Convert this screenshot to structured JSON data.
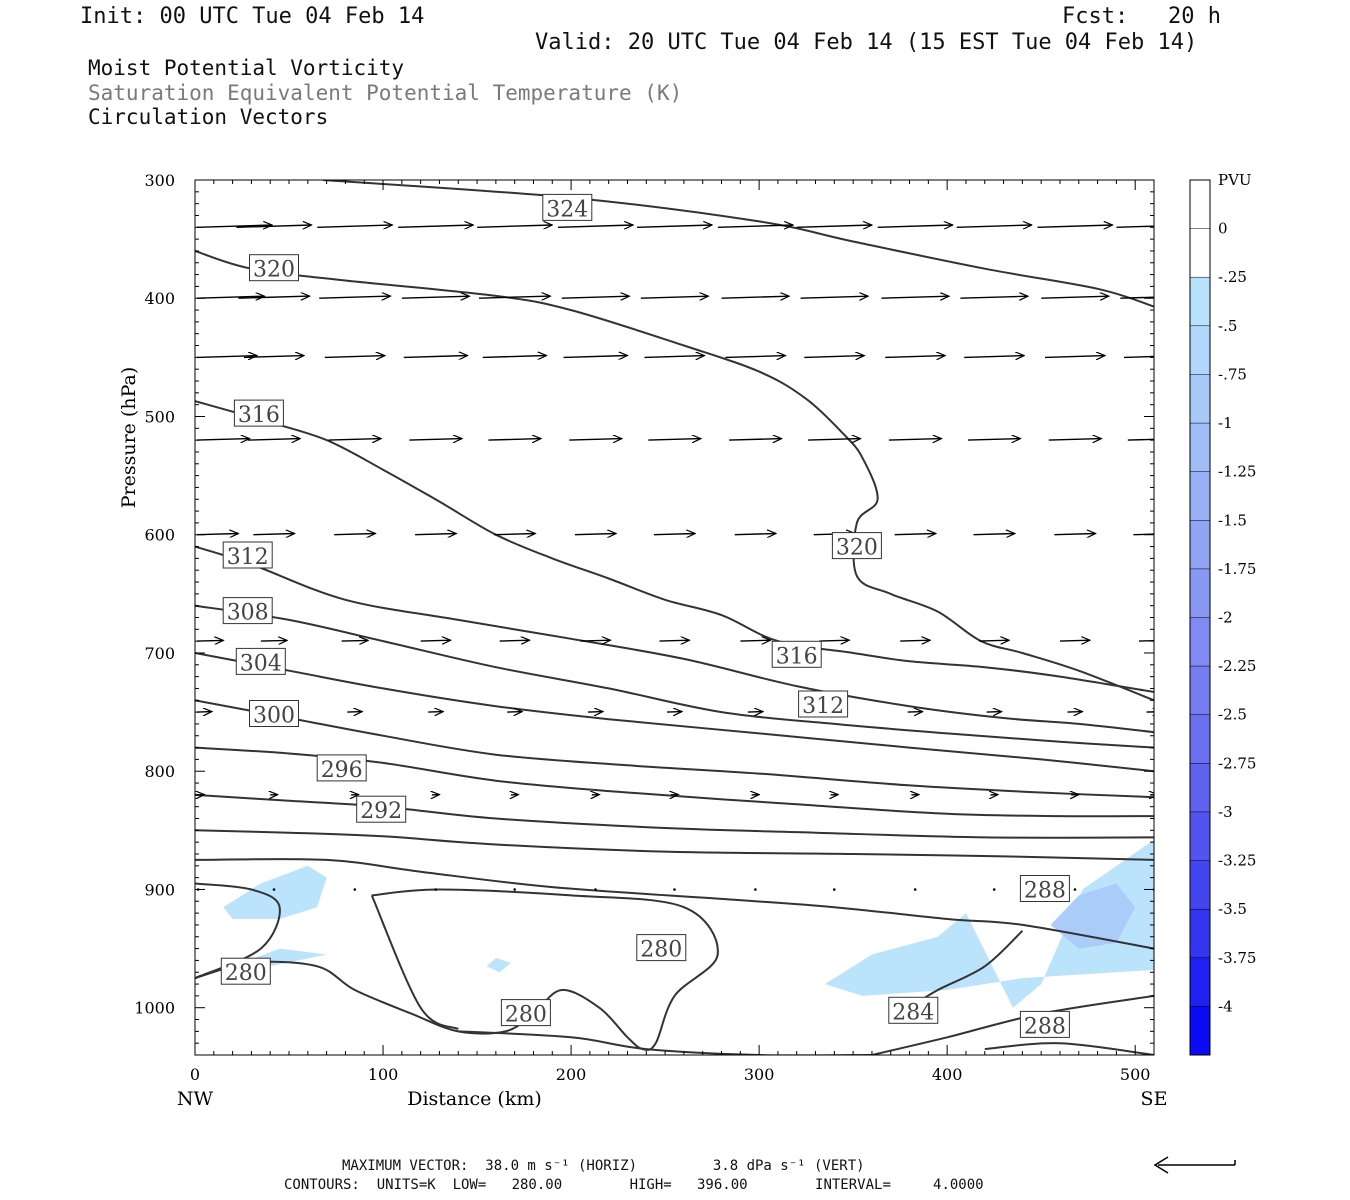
{
  "header": {
    "init": "Init: 00 UTC Tue 04 Feb 14",
    "fcst": "Fcst:   20 h",
    "valid": "Valid: 20 UTC Tue 04 Feb 14 (15 EST Tue 04 Feb 14)",
    "field1": "Moist Potential Vorticity",
    "field2": "Saturation Equivalent Potential Temperature (K)",
    "field3": "Circulation Vectors"
  },
  "chart_data": {
    "type": "contour",
    "xlabel": "Distance (km)",
    "ylabel": "Pressure (hPa)",
    "xlim": [
      0,
      510
    ],
    "ylim": [
      1040,
      300
    ],
    "x_ticks": [
      "0",
      "100",
      "200",
      "300",
      "400",
      "500"
    ],
    "y_ticks": [
      "300",
      "400",
      "500",
      "600",
      "700",
      "800",
      "900",
      "1000"
    ],
    "x_end_labels": {
      "left": "NW",
      "right": "SE"
    },
    "contour_units": "K",
    "contours": [
      {
        "value": 324,
        "label": "324",
        "points": [
          [
            68,
            300
          ],
          [
            200,
            315
          ],
          [
            300,
            335
          ],
          [
            350,
            352
          ],
          [
            420,
            375
          ],
          [
            480,
            392
          ],
          [
            510,
            407
          ]
        ],
        "label_at": [
          198,
          324
        ]
      },
      {
        "value": 320,
        "label": "320",
        "points": [
          [
            0,
            360
          ],
          [
            30,
            375
          ],
          [
            80,
            385
          ],
          [
            160,
            398
          ],
          [
            200,
            410
          ],
          [
            260,
            440
          ],
          [
            300,
            462
          ],
          [
            325,
            485
          ],
          [
            345,
            515
          ],
          [
            355,
            535
          ],
          [
            363,
            570
          ],
          [
            352,
            590
          ],
          [
            352,
            635
          ],
          [
            370,
            650
          ],
          [
            395,
            665
          ],
          [
            418,
            690
          ],
          [
            440,
            700
          ],
          [
            470,
            715
          ],
          [
            510,
            740
          ]
        ],
        "label_at": [
          [
            42,
            375
          ],
          [
            352,
            610
          ]
        ]
      },
      {
        "value": 316,
        "label": "316",
        "points": [
          [
            0,
            487
          ],
          [
            40,
            505
          ],
          [
            70,
            520
          ],
          [
            100,
            545
          ],
          [
            130,
            572
          ],
          [
            160,
            600
          ],
          [
            190,
            620
          ],
          [
            220,
            637
          ],
          [
            250,
            655
          ],
          [
            280,
            668
          ],
          [
            310,
            690
          ],
          [
            350,
            700
          ],
          [
            380,
            707
          ],
          [
            420,
            712
          ],
          [
            460,
            720
          ],
          [
            510,
            733
          ]
        ],
        "label_at": [
          [
            34,
            498
          ],
          [
            320,
            702
          ]
        ]
      },
      {
        "value": 312,
        "label": "312",
        "points": [
          [
            0,
            610
          ],
          [
            30,
            625
          ],
          [
            80,
            655
          ],
          [
            140,
            672
          ],
          [
            200,
            688
          ],
          [
            260,
            705
          ],
          [
            320,
            728
          ],
          [
            380,
            745
          ],
          [
            430,
            755
          ],
          [
            470,
            760
          ],
          [
            510,
            767
          ]
        ],
        "label_at": [
          [
            28,
            618
          ],
          [
            334,
            744
          ]
        ]
      },
      {
        "value": 308,
        "label": "308",
        "points": [
          [
            0,
            660
          ],
          [
            50,
            672
          ],
          [
            100,
            690
          ],
          [
            160,
            712
          ],
          [
            220,
            730
          ],
          [
            280,
            750
          ],
          [
            340,
            760
          ],
          [
            400,
            768
          ],
          [
            460,
            775
          ],
          [
            510,
            780
          ]
        ],
        "label_at": [
          28,
          665
        ]
      },
      {
        "value": 304,
        "label": "304",
        "points": [
          [
            0,
            700
          ],
          [
            50,
            715
          ],
          [
            100,
            730
          ],
          [
            160,
            745
          ],
          [
            220,
            756
          ],
          [
            300,
            768
          ],
          [
            380,
            780
          ],
          [
            450,
            790
          ],
          [
            510,
            800
          ]
        ],
        "label_at": [
          35,
          708
        ]
      },
      {
        "value": 300,
        "label": "300",
        "points": [
          [
            0,
            740
          ],
          [
            50,
            755
          ],
          [
            100,
            770
          ],
          [
            160,
            786
          ],
          [
            230,
            795
          ],
          [
            300,
            802
          ],
          [
            380,
            812
          ],
          [
            450,
            818
          ],
          [
            510,
            822
          ]
        ],
        "label_at": [
          42,
          752
        ]
      },
      {
        "value": 296,
        "label": "296",
        "points": [
          [
            0,
            780
          ],
          [
            50,
            785
          ],
          [
            100,
            793
          ],
          [
            160,
            808
          ],
          [
            230,
            818
          ],
          [
            320,
            828
          ],
          [
            400,
            836
          ],
          [
            460,
            838
          ],
          [
            510,
            838
          ]
        ],
        "label_at": [
          78,
          798
        ]
      },
      {
        "value": 292,
        "label": "292",
        "points": [
          [
            0,
            820
          ],
          [
            50,
            825
          ],
          [
            100,
            830
          ],
          [
            160,
            840
          ],
          [
            250,
            848
          ],
          [
            330,
            852
          ],
          [
            420,
            856
          ],
          [
            510,
            856
          ]
        ],
        "label_at": [
          99,
          833
        ]
      },
      {
        "value": 288,
        "label": "288",
        "points": [
          [
            0,
            850
          ],
          [
            50,
            852
          ],
          [
            100,
            855
          ],
          [
            160,
            862
          ],
          [
            250,
            868
          ],
          [
            350,
            870
          ],
          [
            430,
            872
          ],
          [
            510,
            875
          ]
        ],
        "label_at": [
          [
            452,
            900
          ],
          [
            452,
            1015
          ]
        ]
      },
      {
        "value": 284,
        "label": "284",
        "points": [
          [
            0,
            875
          ],
          [
            70,
            875
          ],
          [
            120,
            885
          ],
          [
            190,
            898
          ],
          [
            280,
            908
          ],
          [
            340,
            915
          ],
          [
            400,
            925
          ],
          [
            440,
            930
          ],
          [
            510,
            950
          ]
        ],
        "label_at": [
          382,
          1003
        ]
      },
      {
        "value": 280,
        "label": "280",
        "points": [
          [
            0,
            895
          ],
          [
            30,
            900
          ],
          [
            45,
            915
          ],
          [
            35,
            950
          ],
          [
            0,
            975
          ]
        ],
        "label_at": [
          [
            27,
            970
          ],
          [
            176,
            1005
          ],
          [
            248,
            950
          ]
        ]
      }
    ],
    "pv_shading": {
      "colorbar_label": "PVU",
      "levels": [
        "0",
        "-.25",
        "-.5",
        "-.75",
        "-1",
        "-1.25",
        "-1.5",
        "-1.75",
        "-2",
        "-2.25",
        "-2.5",
        "-2.75",
        "-3",
        "-3.25",
        "-3.5",
        "-3.75",
        "-4"
      ],
      "colors": [
        "#ffffff",
        "#ffffff",
        "#b8e2fc",
        "#b0d6fc",
        "#a8caf9",
        "#a0bdf8",
        "#98b0f6",
        "#90a4f4",
        "#8898f3",
        "#7f8af2",
        "#757df1",
        "#6a70f0",
        "#5f62ef",
        "#5254ef",
        "#4345ef",
        "#3335f0",
        "#1f20f2",
        "#0a0af4"
      ]
    },
    "vectors": {
      "max_horizontal": "38.0 m s-1",
      "max_vertical": "3.8 dPa s-1",
      "rows": [
        {
          "p": 340,
          "u": [
            1,
            1,
            1,
            1,
            1,
            1,
            1,
            1,
            1,
            1,
            1,
            1,
            1
          ]
        },
        {
          "p": 400,
          "u": [
            0.9,
            0.95,
            0.95,
            0.9,
            0.95,
            0.9,
            0.9,
            0.9,
            0.9,
            0.9,
            0.9,
            0.9,
            0.9
          ]
        },
        {
          "p": 450,
          "u": [
            0.8,
            0.8,
            0.8,
            0.85,
            0.85,
            0.85,
            0.8,
            0.8,
            0.8,
            0.8,
            0.8,
            0.8,
            0.8
          ]
        },
        {
          "p": 520,
          "u": [
            0.7,
            0.7,
            0.7,
            0.7,
            0.7,
            0.7,
            0.7,
            0.7,
            0.7,
            0.7,
            0.7,
            0.7,
            0.7
          ]
        },
        {
          "p": 600,
          "u": [
            0.55,
            0.55,
            0.55,
            0.55,
            0.55,
            0.55,
            0.55,
            0.55,
            0.55,
            0.55,
            0.55,
            0.55,
            0.55
          ]
        },
        {
          "p": 690,
          "u": [
            0.35,
            0.35,
            0.35,
            0.4,
            0.4,
            0.4,
            0.4,
            0.4,
            0.4,
            0.4,
            0.4,
            0.4,
            0.4
          ]
        },
        {
          "p": 750,
          "u": [
            0.2,
            0.2,
            0.2,
            0.2,
            0.2,
            0.2,
            0.2,
            0.2,
            0.2,
            0.2,
            0.2,
            0.2,
            0.2
          ]
        },
        {
          "p": 820,
          "u": [
            0.1,
            0.1,
            0.1,
            0.1,
            0.1,
            0.1,
            0.1,
            0.1,
            0.1,
            0.1,
            0.1,
            0.1,
            0.1
          ]
        },
        {
          "p": 900,
          "u": [
            0.03,
            0.03,
            0.03,
            0.03,
            0.03,
            0.03,
            0.03,
            0.03,
            0.03,
            0.03,
            0.03,
            0.03,
            0.03
          ]
        }
      ]
    }
  },
  "footer": {
    "max_vector": "MAXIMUM VECTOR:  38.0 m s⁻¹ (HORIZ)         3.8 dPa s⁻¹ (VERT)",
    "contours": "CONTOURS:  UNITS=K  LOW=   280.00        HIGH=   396.00        INTERVAL=     4.0000"
  }
}
